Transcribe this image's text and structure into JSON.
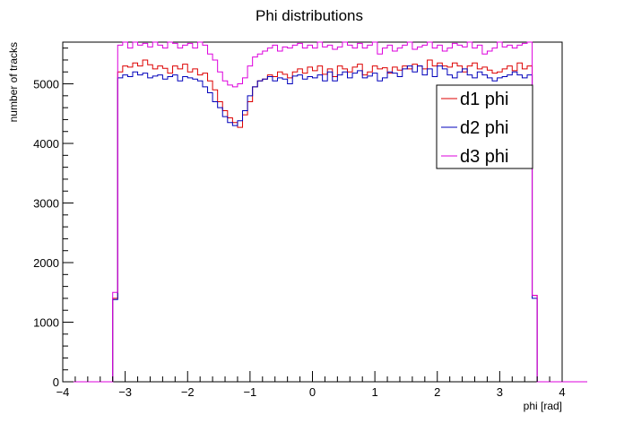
{
  "chart_data": {
    "type": "line",
    "title": "Phi distributions",
    "xlabel": "phi [rad]",
    "ylabel": "number of tracks",
    "xlim": [
      -4,
      4
    ],
    "ylim": [
      0,
      5700
    ],
    "x_ticks": [
      -4,
      -3,
      -2,
      -1,
      0,
      1,
      2,
      3,
      4
    ],
    "y_ticks": [
      0,
      1000,
      2000,
      3000,
      4000,
      5000
    ],
    "grid": false,
    "legend_position": "right",
    "bin_width": 0.08,
    "x_bin_edges_start": -4.0,
    "series": [
      {
        "name": "d1 phi",
        "color": "#dd0000",
        "values": [
          0,
          0,
          0,
          0,
          0,
          0,
          0,
          0,
          0,
          0,
          1400,
          5200,
          5300,
          5280,
          5350,
          5300,
          5400,
          5320,
          5250,
          5300,
          5260,
          5180,
          5300,
          5250,
          5330,
          5200,
          5250,
          5150,
          5180,
          5050,
          4900,
          4700,
          4550,
          4430,
          4350,
          4270,
          4480,
          4700,
          4950,
          5050,
          5080,
          5150,
          5120,
          5200,
          5160,
          5100,
          5200,
          5250,
          5180,
          5280,
          5220,
          5300,
          5160,
          5250,
          5120,
          5300,
          5250,
          5200,
          5280,
          5330,
          5150,
          5200,
          5300,
          5250,
          5270,
          5180,
          5280,
          5230,
          5300,
          5250,
          5330,
          5300,
          5250,
          5400,
          5300,
          5350,
          5300,
          5280,
          5350,
          5300,
          5200,
          5300,
          5350,
          5250,
          5280,
          5230,
          5180,
          5200,
          5250,
          5300,
          5220,
          5350,
          5250,
          5300,
          1450,
          0,
          0,
          0,
          0,
          0,
          0,
          0,
          0,
          0,
          0
        ]
      },
      {
        "name": "d2 phi",
        "color": "#0000bb",
        "values": [
          0,
          0,
          0,
          0,
          0,
          0,
          0,
          0,
          0,
          0,
          1380,
          5100,
          5150,
          5120,
          5200,
          5150,
          5180,
          5100,
          5130,
          5150,
          5080,
          5120,
          5150,
          5050,
          5120,
          5100,
          5080,
          5050,
          4950,
          4850,
          4700,
          4600,
          4450,
          4350,
          4300,
          4380,
          4550,
          4800,
          4950,
          5050,
          5080,
          5120,
          5050,
          5100,
          5080,
          5000,
          5130,
          5150,
          5080,
          5120,
          5100,
          5150,
          5050,
          5200,
          5050,
          5150,
          5200,
          5100,
          5180,
          5220,
          5100,
          5130,
          5180,
          5050,
          5100,
          5200,
          5180,
          5120,
          5250,
          5300,
          5200,
          5300,
          5150,
          5250,
          5120,
          5300,
          5250,
          5150,
          5100,
          5200,
          5250,
          5150,
          5100,
          5200,
          5150,
          5100,
          5050,
          5100,
          5120,
          5150,
          5200,
          5150,
          5100,
          5150,
          1400,
          0,
          0,
          0,
          0,
          0,
          0,
          0,
          0,
          0,
          0
        ]
      },
      {
        "name": "d3 phi",
        "color": "#dd00dd",
        "values": [
          0,
          0,
          0,
          0,
          0,
          0,
          0,
          0,
          0,
          0,
          1500,
          5650,
          5700,
          5600,
          5700,
          5650,
          5680,
          5620,
          5700,
          5650,
          5600,
          5700,
          5680,
          5600,
          5650,
          5680,
          5600,
          5700,
          5650,
          5500,
          5400,
          5200,
          5050,
          4980,
          4950,
          5000,
          5100,
          5300,
          5450,
          5500,
          5550,
          5600,
          5650,
          5550,
          5620,
          5600,
          5650,
          5680,
          5600,
          5650,
          5600,
          5700,
          5620,
          5650,
          5580,
          5620,
          5700,
          5650,
          5600,
          5680,
          5600,
          5650,
          5700,
          5500,
          5600,
          5650,
          5550,
          5600,
          5650,
          5700,
          5580,
          5620,
          5650,
          5700,
          5600,
          5650,
          5550,
          5600,
          5680,
          5650,
          5620,
          5700,
          5600,
          5650,
          5500,
          5550,
          5600,
          5700,
          5620,
          5650,
          5600,
          5650,
          5680,
          5700,
          1450,
          0,
          0,
          0,
          0,
          0,
          0,
          0,
          0,
          0,
          0
        ]
      }
    ]
  }
}
